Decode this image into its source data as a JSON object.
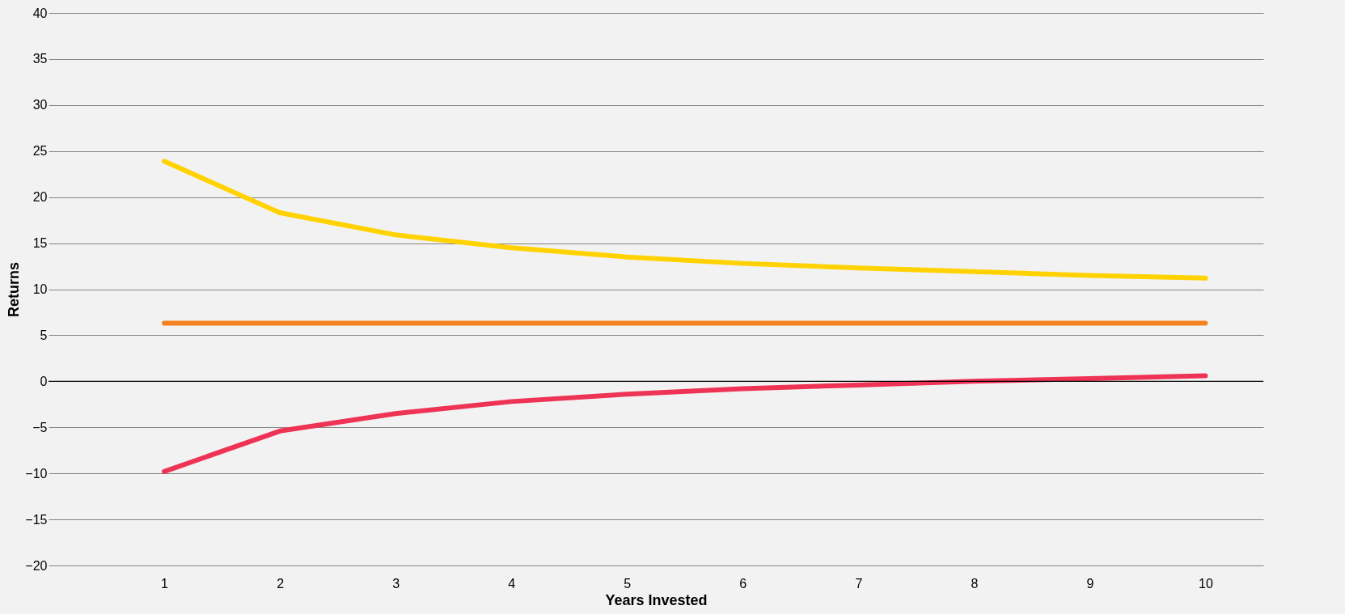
{
  "chart_data": {
    "type": "line",
    "xlabel": "Years Invested",
    "ylabel": "Returns",
    "categories": [
      "1",
      "2",
      "3",
      "4",
      "5",
      "6",
      "7",
      "8",
      "9",
      "10"
    ],
    "series": [
      {
        "color": "#ffd200",
        "values": [
          23.9,
          18.3,
          15.9,
          14.5,
          13.5,
          12.8,
          12.3,
          11.9,
          11.5,
          11.2
        ]
      },
      {
        "color": "#f58220",
        "values": [
          6.3,
          6.3,
          6.3,
          6.3,
          6.3,
          6.3,
          6.3,
          6.3,
          6.3,
          6.3
        ]
      },
      {
        "color": "#ee3355",
        "values": [
          -9.8,
          -5.4,
          -3.5,
          -2.2,
          -1.4,
          -0.8,
          -0.4,
          0.0,
          0.3,
          0.6
        ]
      }
    ],
    "ylim": [
      -20,
      40
    ],
    "yticks": [
      -20,
      -15,
      -10,
      -5,
      0,
      5,
      10,
      15,
      20,
      25,
      30,
      35,
      40
    ],
    "ref_lines": [
      {
        "axis": "y",
        "value": 0,
        "color": "#000000"
      }
    ],
    "grid": "y",
    "legend": false,
    "marker": "none",
    "line_style": "solid"
  }
}
